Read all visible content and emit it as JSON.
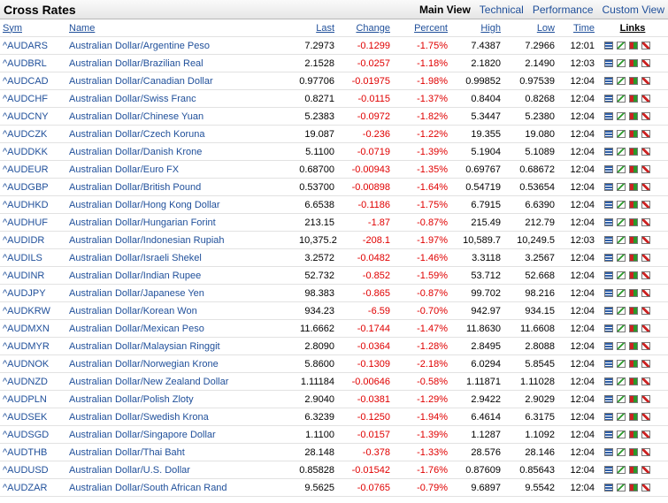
{
  "header": {
    "title": "Cross Rates",
    "tabs": [
      "Main View",
      "Technical",
      "Performance",
      "Custom View"
    ]
  },
  "table": {
    "columns": [
      "Sym",
      "Name",
      "Last",
      "Change",
      "Percent",
      "High",
      "Low",
      "Time",
      "Links"
    ],
    "rows": [
      [
        "^AUDARS",
        "Australian Dollar/Argentine Peso",
        "7.2973",
        "-0.1299",
        "-1.75%",
        "7.4387",
        "7.2966",
        "12:01"
      ],
      [
        "^AUDBRL",
        "Australian Dollar/Brazilian Real",
        "2.1528",
        "-0.0257",
        "-1.18%",
        "2.1820",
        "2.1490",
        "12:03"
      ],
      [
        "^AUDCAD",
        "Australian Dollar/Canadian Dollar",
        "0.97706",
        "-0.01975",
        "-1.98%",
        "0.99852",
        "0.97539",
        "12:04"
      ],
      [
        "^AUDCHF",
        "Australian Dollar/Swiss Franc",
        "0.8271",
        "-0.0115",
        "-1.37%",
        "0.8404",
        "0.8268",
        "12:04"
      ],
      [
        "^AUDCNY",
        "Australian Dollar/Chinese Yuan",
        "5.2383",
        "-0.0972",
        "-1.82%",
        "5.3447",
        "5.2380",
        "12:04"
      ],
      [
        "^AUDCZK",
        "Australian Dollar/Czech Koruna",
        "19.087",
        "-0.236",
        "-1.22%",
        "19.355",
        "19.080",
        "12:04"
      ],
      [
        "^AUDDKK",
        "Australian Dollar/Danish Krone",
        "5.1100",
        "-0.0719",
        "-1.39%",
        "5.1904",
        "5.1089",
        "12:04"
      ],
      [
        "^AUDEUR",
        "Australian Dollar/Euro FX",
        "0.68700",
        "-0.00943",
        "-1.35%",
        "0.69767",
        "0.68672",
        "12:04"
      ],
      [
        "^AUDGBP",
        "Australian Dollar/British Pound",
        "0.53700",
        "-0.00898",
        "-1.64%",
        "0.54719",
        "0.53654",
        "12:04"
      ],
      [
        "^AUDHKD",
        "Australian Dollar/Hong Kong Dollar",
        "6.6538",
        "-0.1186",
        "-1.75%",
        "6.7915",
        "6.6390",
        "12:04"
      ],
      [
        "^AUDHUF",
        "Australian Dollar/Hungarian Forint",
        "213.15",
        "-1.87",
        "-0.87%",
        "215.49",
        "212.79",
        "12:04"
      ],
      [
        "^AUDIDR",
        "Australian Dollar/Indonesian Rupiah",
        "10,375.2",
        "-208.1",
        "-1.97%",
        "10,589.7",
        "10,249.5",
        "12:03"
      ],
      [
        "^AUDILS",
        "Australian Dollar/Israeli Shekel",
        "3.2572",
        "-0.0482",
        "-1.46%",
        "3.3118",
        "3.2567",
        "12:04"
      ],
      [
        "^AUDINR",
        "Australian Dollar/Indian Rupee",
        "52.732",
        "-0.852",
        "-1.59%",
        "53.712",
        "52.668",
        "12:04"
      ],
      [
        "^AUDJPY",
        "Australian Dollar/Japanese Yen",
        "98.383",
        "-0.865",
        "-0.87%",
        "99.702",
        "98.216",
        "12:04"
      ],
      [
        "^AUDKRW",
        "Australian Dollar/Korean Won",
        "934.23",
        "-6.59",
        "-0.70%",
        "942.97",
        "934.15",
        "12:04"
      ],
      [
        "^AUDMXN",
        "Australian Dollar/Mexican Peso",
        "11.6662",
        "-0.1744",
        "-1.47%",
        "11.8630",
        "11.6608",
        "12:04"
      ],
      [
        "^AUDMYR",
        "Australian Dollar/Malaysian Ringgit",
        "2.8090",
        "-0.0364",
        "-1.28%",
        "2.8495",
        "2.8088",
        "12:04"
      ],
      [
        "^AUDNOK",
        "Australian Dollar/Norwegian Krone",
        "5.8600",
        "-0.1309",
        "-2.18%",
        "6.0294",
        "5.8545",
        "12:04"
      ],
      [
        "^AUDNZD",
        "Australian Dollar/New Zealand Dollar",
        "1.11184",
        "-0.00646",
        "-0.58%",
        "1.11871",
        "1.11028",
        "12:04"
      ],
      [
        "^AUDPLN",
        "Australian Dollar/Polish Zloty",
        "2.9040",
        "-0.0381",
        "-1.29%",
        "2.9422",
        "2.9029",
        "12:04"
      ],
      [
        "^AUDSEK",
        "Australian Dollar/Swedish Krona",
        "6.3239",
        "-0.1250",
        "-1.94%",
        "6.4614",
        "6.3175",
        "12:04"
      ],
      [
        "^AUDSGD",
        "Australian Dollar/Singapore Dollar",
        "1.1100",
        "-0.0157",
        "-1.39%",
        "1.1287",
        "1.1092",
        "12:04"
      ],
      [
        "^AUDTHB",
        "Australian Dollar/Thai Baht",
        "28.148",
        "-0.378",
        "-1.33%",
        "28.576",
        "28.146",
        "12:04"
      ],
      [
        "^AUDUSD",
        "Australian Dollar/U.S. Dollar",
        "0.85828",
        "-0.01542",
        "-1.76%",
        "0.87609",
        "0.85643",
        "12:04"
      ],
      [
        "^AUDZAR",
        "Australian Dollar/South African Rand",
        "9.5625",
        "-0.0765",
        "-0.79%",
        "9.6897",
        "9.5542",
        "12:04"
      ]
    ]
  }
}
